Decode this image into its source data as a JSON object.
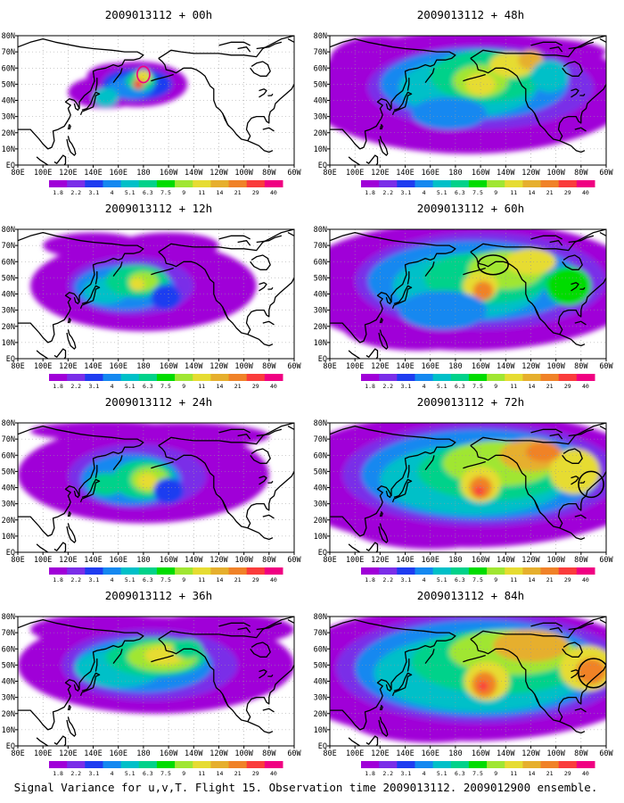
{
  "figure": {
    "caption": "Signal Variance for u,v,T. Flight 15. Observation time 2009013112. 2009012900 ensemble."
  },
  "axes": {
    "lon_labels": [
      "80E",
      "100E",
      "120E",
      "140E",
      "160E",
      "180",
      "160W",
      "140W",
      "120W",
      "100W",
      "80W",
      "60W"
    ],
    "lat_labels": [
      "EQ",
      "10N",
      "20N",
      "30N",
      "40N",
      "50N",
      "60N",
      "70N",
      "80N"
    ],
    "lon_range": [
      "80E",
      "60W"
    ],
    "lat_range": [
      "EQ",
      "80N"
    ]
  },
  "colorbar": {
    "levels": [
      "1.8",
      "2.2",
      "3.1",
      "4",
      "5.1",
      "6.3",
      "7.5",
      "9",
      "11",
      "14",
      "21",
      "29",
      "40"
    ],
    "colors": [
      "#a000d8",
      "#7a2ee8",
      "#1f3cf0",
      "#1488f0",
      "#00c0c8",
      "#00d28a",
      "#00dc00",
      "#a0e632",
      "#e6dc32",
      "#e6af2d",
      "#f08228",
      "#fa3c3c",
      "#f00082"
    ]
  },
  "panels": [
    {
      "id": "p00",
      "title": "2009013112 + 00h",
      "col": 0,
      "row": 0
    },
    {
      "id": "p48",
      "title": "2009013112 + 48h",
      "col": 1,
      "row": 0
    },
    {
      "id": "p12",
      "title": "2009013112 + 12h",
      "col": 0,
      "row": 1
    },
    {
      "id": "p60",
      "title": "2009013112 + 60h",
      "col": 1,
      "row": 1
    },
    {
      "id": "p24",
      "title": "2009013112 + 24h",
      "col": 0,
      "row": 2
    },
    {
      "id": "p72",
      "title": "2009013112 + 72h",
      "col": 1,
      "row": 2
    },
    {
      "id": "p36",
      "title": "2009013112 + 36h",
      "col": 0,
      "row": 3
    },
    {
      "id": "p84",
      "title": "2009013112 + 84h",
      "col": 1,
      "row": 3
    }
  ]
}
